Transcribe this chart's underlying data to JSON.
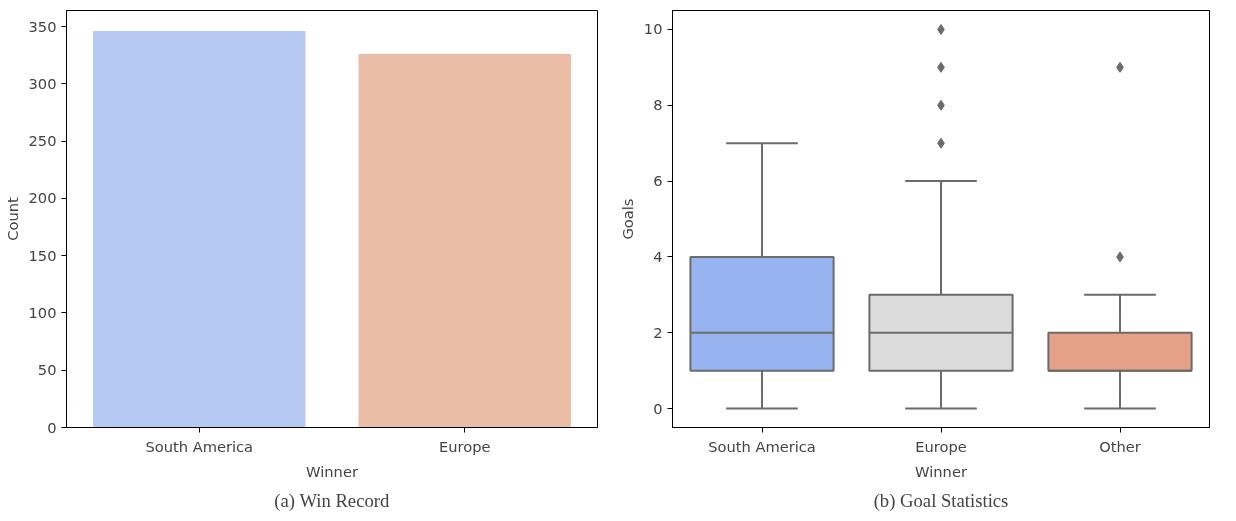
{
  "chart_data": [
    {
      "type": "bar",
      "categories": [
        "South America",
        "Europe"
      ],
      "values": [
        346,
        326
      ],
      "colors": [
        "#b5c9f2",
        "#ebbca6"
      ],
      "xlabel": "Winner",
      "ylabel": "Count",
      "ylim": [
        0,
        364
      ],
      "yticks": [
        0,
        50,
        100,
        150,
        200,
        250,
        300,
        350
      ],
      "annotations": [
        "(a) Win Record"
      ]
    },
    {
      "type": "box",
      "categories": [
        "South America",
        "Europe",
        "Other"
      ],
      "colors": [
        "#98b4f0",
        "#dcdcdc",
        "#e6a189"
      ],
      "marker": "diamond",
      "xlabel": "Winner",
      "ylabel": "Goals",
      "ylim": [
        -0.5,
        10.5
      ],
      "yticks": [
        0,
        2,
        4,
        6,
        8,
        10
      ],
      "annotations": [
        "(b) Goal Statistics"
      ],
      "boxes": [
        {
          "low": 0,
          "q1": 1,
          "median": 2,
          "q3": 4,
          "high": 7
        },
        {
          "low": 0,
          "q1": 1,
          "median": 2,
          "q3": 3,
          "high": 6,
          "outliers": [
            7,
            8,
            9,
            10
          ]
        },
        {
          "low": 0,
          "q1": 1,
          "median": 1,
          "q3": 2,
          "high": 3,
          "outliers": [
            4,
            9
          ]
        }
      ]
    }
  ]
}
